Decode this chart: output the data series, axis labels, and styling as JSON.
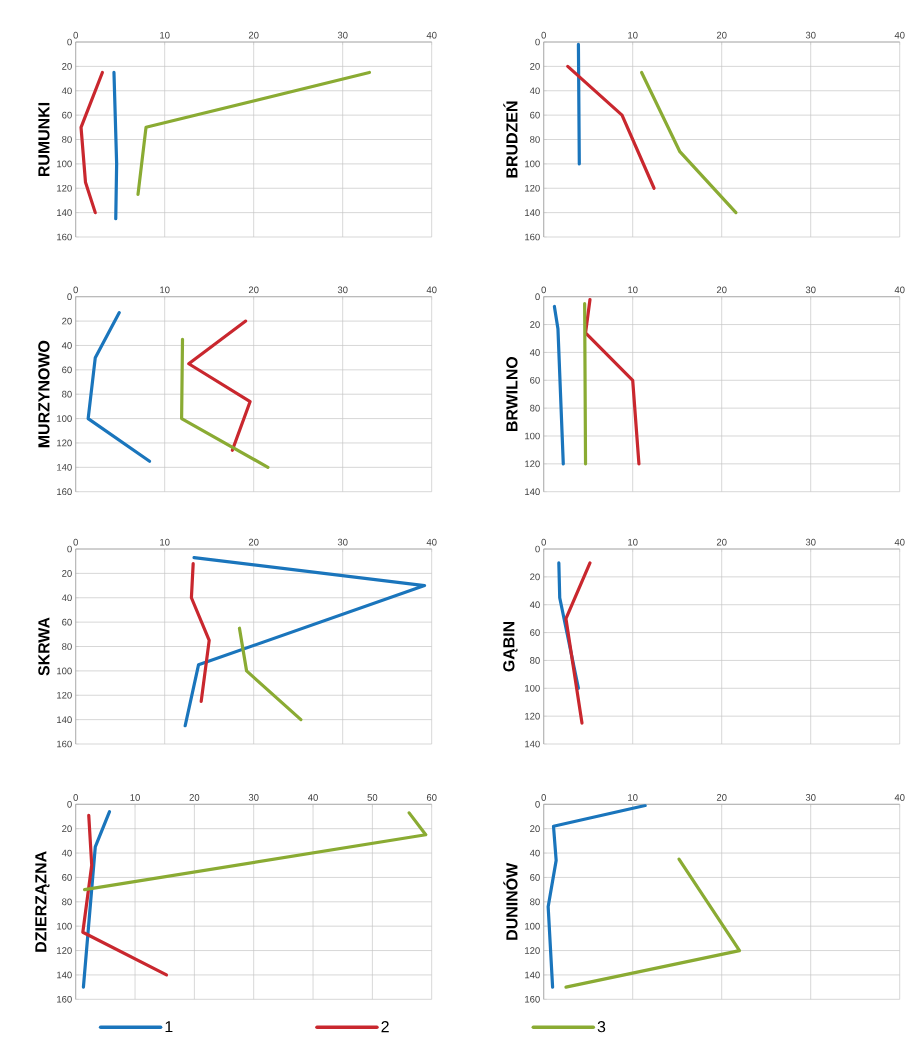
{
  "chart_data": [
    {
      "type": "line",
      "ylabel": "RUMUNKI",
      "xlim": [
        0,
        40
      ],
      "xticks": [
        0,
        10,
        20,
        30,
        40
      ],
      "ylim": [
        160,
        0
      ],
      "yticks": [
        0,
        20,
        40,
        60,
        80,
        100,
        120,
        140,
        160
      ],
      "grid": true,
      "series": [
        {
          "color": "#1a75bc",
          "x": [
            4.3,
            4.6,
            4.5
          ],
          "values": [
            25,
            100,
            145
          ]
        },
        {
          "color": "#c9272e",
          "x": [
            3.0,
            0.6,
            1.1,
            2.2
          ],
          "values": [
            25,
            70,
            115,
            140
          ]
        },
        {
          "color": "#8aab33",
          "x": [
            33.0,
            7.9,
            7.0
          ],
          "values": [
            25,
            70,
            125
          ]
        }
      ]
    },
    {
      "type": "line",
      "ylabel": "BRUDZEŃ",
      "xlim": [
        0,
        40
      ],
      "xticks": [
        0,
        10,
        20,
        30,
        40
      ],
      "ylim": [
        160,
        0
      ],
      "yticks": [
        0,
        20,
        40,
        60,
        80,
        100,
        120,
        140,
        160
      ],
      "grid": true,
      "series": [
        {
          "color": "#1a75bc",
          "x": [
            3.9,
            4.0
          ],
          "values": [
            2,
            100
          ]
        },
        {
          "color": "#c9272e",
          "x": [
            2.7,
            8.8,
            12.4
          ],
          "values": [
            20,
            60,
            120
          ]
        },
        {
          "color": "#8aab33",
          "x": [
            11.0,
            15.3,
            21.6
          ],
          "values": [
            25,
            90,
            140
          ]
        }
      ]
    },
    {
      "type": "line",
      "ylabel": "MURZYNOWO",
      "xlim": [
        0,
        40
      ],
      "xticks": [
        0,
        10,
        20,
        30,
        40
      ],
      "ylim": [
        160,
        0
      ],
      "yticks": [
        0,
        20,
        40,
        60,
        80,
        100,
        120,
        140,
        160
      ],
      "grid": true,
      "series": [
        {
          "color": "#1a75bc",
          "x": [
            4.9,
            2.2,
            1.4,
            8.3
          ],
          "values": [
            13,
            50,
            100,
            135
          ]
        },
        {
          "color": "#c9272e",
          "x": [
            19.1,
            12.7,
            19.6,
            17.6
          ],
          "values": [
            20,
            55,
            86,
            126
          ]
        },
        {
          "color": "#8aab33",
          "x": [
            12.0,
            11.9,
            21.6
          ],
          "values": [
            35,
            100,
            140
          ]
        }
      ]
    },
    {
      "type": "line",
      "ylabel": "BRWILNO",
      "xlim": [
        0,
        40
      ],
      "xticks": [
        0,
        10,
        20,
        30,
        40
      ],
      "ylim": [
        140,
        0
      ],
      "yticks": [
        0,
        20,
        40,
        60,
        80,
        100,
        120,
        140
      ],
      "grid": true,
      "series": [
        {
          "color": "#1a75bc",
          "x": [
            1.2,
            1.6,
            2.2
          ],
          "values": [
            7,
            23,
            120
          ]
        },
        {
          "color": "#c9272e",
          "x": [
            5.2,
            4.7,
            10.0,
            10.7
          ],
          "values": [
            2,
            26,
            60,
            120
          ]
        },
        {
          "color": "#8aab33",
          "x": [
            4.6,
            4.7
          ],
          "values": [
            5,
            120
          ]
        }
      ]
    },
    {
      "type": "line",
      "ylabel": "SKRWA",
      "xlim": [
        0,
        40
      ],
      "xticks": [
        0,
        10,
        20,
        30,
        40
      ],
      "ylim": [
        160,
        0
      ],
      "yticks": [
        0,
        20,
        40,
        60,
        80,
        100,
        120,
        140,
        160
      ],
      "grid": true,
      "series": [
        {
          "color": "#1a75bc",
          "x": [
            13.3,
            39.2,
            13.8,
            12.3
          ],
          "values": [
            7,
            30,
            95,
            145
          ]
        },
        {
          "color": "#c9272e",
          "x": [
            13.2,
            13.0,
            15.0,
            14.1
          ],
          "values": [
            12,
            40,
            75,
            125
          ]
        },
        {
          "color": "#8aab33",
          "x": [
            18.4,
            19.2,
            25.3
          ],
          "values": [
            65,
            100,
            140
          ]
        }
      ]
    },
    {
      "type": "line",
      "ylabel": "GĄBIN",
      "xlim": [
        0,
        40
      ],
      "xticks": [
        0,
        10,
        20,
        30,
        40
      ],
      "ylim": [
        140,
        0
      ],
      "yticks": [
        0,
        20,
        40,
        60,
        80,
        100,
        120,
        140
      ],
      "grid": true,
      "series": [
        {
          "color": "#1a75bc",
          "x": [
            1.7,
            1.8,
            3.9
          ],
          "values": [
            10,
            35,
            100
          ]
        },
        {
          "color": "#c9272e",
          "x": [
            5.2,
            2.5,
            4.3
          ],
          "values": [
            10,
            50,
            125
          ]
        }
      ]
    },
    {
      "type": "line",
      "ylabel": "DZIERZĄZNA",
      "xlim": [
        0,
        60
      ],
      "xticks": [
        0,
        10,
        20,
        30,
        40,
        50,
        60
      ],
      "ylim": [
        160,
        0
      ],
      "yticks": [
        0,
        20,
        40,
        60,
        80,
        100,
        120,
        140,
        160
      ],
      "grid": true,
      "legend": "bottom",
      "series": [
        {
          "name": "1",
          "color": "#1a75bc",
          "x": [
            5.7,
            3.3,
            1.3
          ],
          "values": [
            6,
            35,
            150
          ]
        },
        {
          "name": "2",
          "color": "#c9272e",
          "x": [
            2.2,
            2.7,
            1.2,
            15.3
          ],
          "values": [
            9,
            50,
            105,
            140
          ]
        },
        {
          "name": "3",
          "color": "#8aab33",
          "x": [
            56.2,
            59.0,
            1.5
          ],
          "values": [
            7,
            25,
            70
          ]
        }
      ]
    },
    {
      "type": "line",
      "ylabel": "DUNINÓW",
      "xlim": [
        0,
        40
      ],
      "xticks": [
        0,
        10,
        20,
        30,
        40
      ],
      "ylim": [
        160,
        0
      ],
      "yticks": [
        0,
        20,
        40,
        60,
        80,
        100,
        120,
        140,
        160
      ],
      "grid": true,
      "series": [
        {
          "color": "#1a75bc",
          "x": [
            11.4,
            1.1,
            1.4,
            0.5,
            1.0
          ],
          "values": [
            1,
            18,
            46,
            84,
            150
          ]
        },
        {
          "color": "#8aab33",
          "x": [
            15.2,
            22.0,
            2.5
          ],
          "values": [
            45,
            120,
            150
          ]
        }
      ]
    }
  ]
}
